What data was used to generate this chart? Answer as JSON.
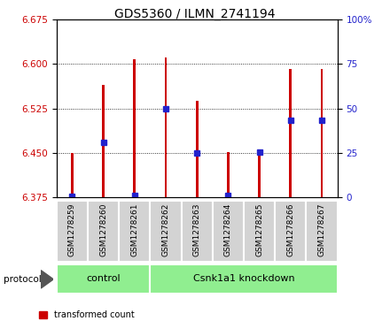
{
  "title": "GDS5360 / ILMN_2741194",
  "samples": [
    "GSM1278259",
    "GSM1278260",
    "GSM1278261",
    "GSM1278262",
    "GSM1278263",
    "GSM1278264",
    "GSM1278265",
    "GSM1278266",
    "GSM1278267"
  ],
  "bar_bottoms": [
    6.375,
    6.375,
    6.375,
    6.375,
    6.375,
    6.375,
    6.375,
    6.375,
    6.375
  ],
  "bar_tops": [
    6.45,
    6.565,
    6.607,
    6.61,
    6.537,
    6.452,
    6.452,
    6.592,
    6.592
  ],
  "blue_values": [
    6.377,
    6.468,
    6.378,
    6.525,
    6.45,
    6.378,
    6.452,
    6.505,
    6.505
  ],
  "ylim_left": [
    6.375,
    6.675
  ],
  "ylim_right": [
    0,
    100
  ],
  "yticks_left": [
    6.375,
    6.45,
    6.525,
    6.6,
    6.675
  ],
  "yticks_right": [
    0,
    25,
    50,
    75,
    100
  ],
  "groups": [
    {
      "label": "control",
      "start": 0,
      "end": 3
    },
    {
      "label": "Csnk1a1 knockdown",
      "start": 3,
      "end": 9
    }
  ],
  "bar_color": "#cc0000",
  "blue_color": "#2222cc",
  "group_color": "#90ee90",
  "bar_width": 0.08,
  "tick_label_color_left": "#cc0000",
  "tick_label_color_right": "#2222cc",
  "title_fontsize": 10,
  "tick_fontsize": 7.5,
  "label_fontsize": 6.5,
  "group_fontsize": 8,
  "legend_fontsize": 7
}
